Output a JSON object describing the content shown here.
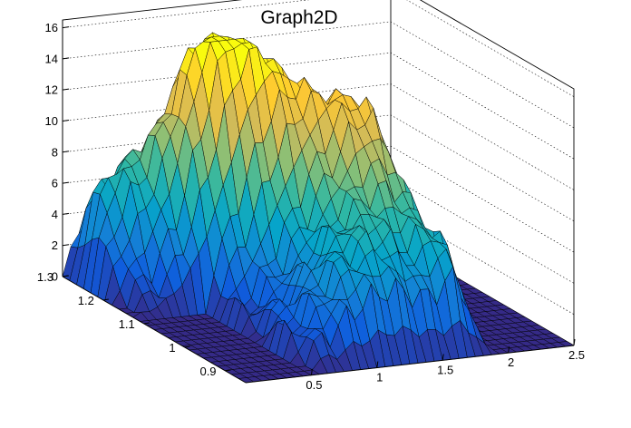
{
  "chart_data": {
    "type": "surface",
    "title": "Graph2D",
    "xlabel": "",
    "ylabel": "",
    "zlabel": "",
    "x_ticks": [
      "0.5",
      "1",
      "1.5",
      "2",
      "2.5"
    ],
    "y_ticks": [
      "0.9",
      "1",
      "1.1",
      "1.2",
      "1.3"
    ],
    "z_ticks": [
      "0",
      "2",
      "4",
      "6",
      "8",
      "10",
      "12",
      "14",
      "16"
    ],
    "xlim": [
      0.0,
      2.5
    ],
    "ylim": [
      0.85,
      1.3
    ],
    "zlim": [
      0,
      16.5
    ],
    "grid": true,
    "palette": [
      "#352a87",
      "#0f5cdd",
      "#1481d6",
      "#06a4ca",
      "#2eb7a4",
      "#87bf77",
      "#d1bb59",
      "#fec832",
      "#f9fb0e"
    ],
    "description_points": [
      {
        "x": 0.15,
        "y": 1.27,
        "z": 4.5
      },
      {
        "x": 0.5,
        "y": 1.25,
        "z": 10
      },
      {
        "x": 0.8,
        "y": 1.2,
        "z": 14.5
      },
      {
        "x": 1.0,
        "y": 1.15,
        "z": 13
      },
      {
        "x": 1.3,
        "y": 1.1,
        "z": 11
      },
      {
        "x": 1.6,
        "y": 1.05,
        "z": 11.5
      },
      {
        "x": 1.2,
        "y": 0.95,
        "z": 9.5
      },
      {
        "x": 1.65,
        "y": 0.9,
        "z": 9.5
      },
      {
        "x": 2.2,
        "y": 1.0,
        "z": 0
      }
    ]
  }
}
